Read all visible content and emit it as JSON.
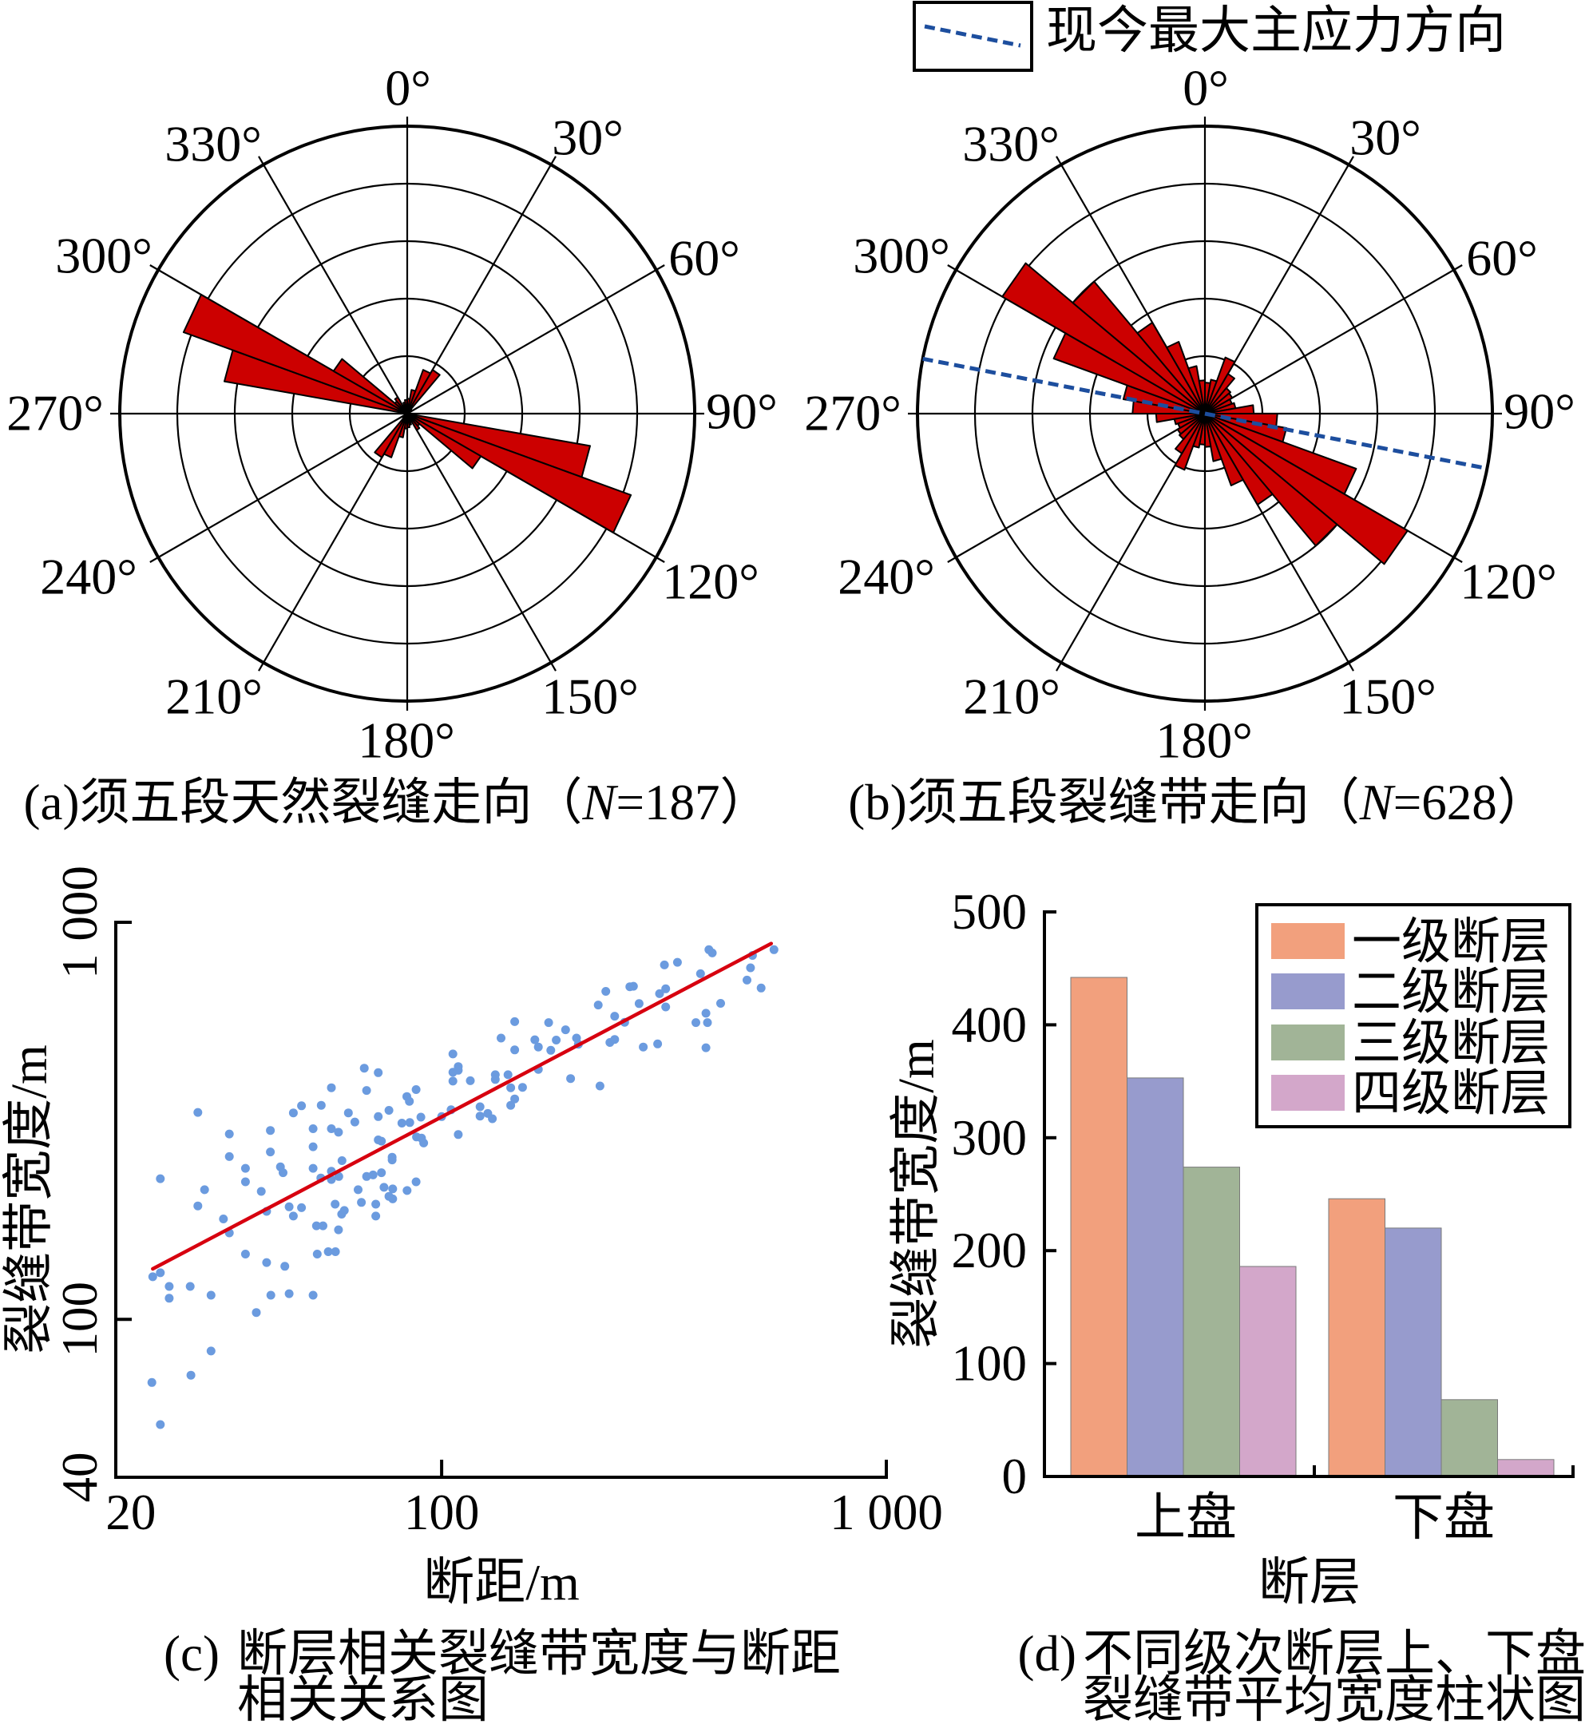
{
  "legend": {
    "label": "现今最大主应力方向",
    "line_color": "#1D4E9E"
  },
  "chart_data": [
    {
      "panel": "a",
      "type": "rose",
      "caption": {
        "label": "(a)",
        "title": "须五段天然裂缝走向",
        "open": "（",
        "n_symbol": "N",
        "n_value": "=187",
        "close": "）"
      },
      "angle_ticks_deg": [
        0,
        30,
        60,
        90,
        120,
        150,
        180,
        210,
        240,
        270,
        300,
        330
      ],
      "angle_labels": [
        "0°",
        "30°",
        "60°",
        "90°",
        "120°",
        "150°",
        "180°",
        "210°",
        "240°",
        "270°",
        "300°",
        "330°"
      ],
      "ring_count": 5,
      "bin_width_deg": 10,
      "radius_ring_units": [
        0.26,
        0.42,
        0.81,
        0.88,
        0.1,
        0,
        0,
        0,
        0,
        0.15,
        3.23,
        4.14,
        1.48,
        0.28,
        0.33,
        0.15,
        0.2,
        0.24,
        0.26,
        0.42,
        0.81,
        0.88,
        0.1,
        0,
        0,
        0,
        0,
        0.15,
        3.23,
        4.14,
        1.48,
        0.28,
        0.33,
        0.15,
        0.2,
        0.24
      ],
      "petal_color": "#CC0000"
    },
    {
      "panel": "b",
      "type": "rose",
      "caption": {
        "label": "(b)",
        "title": "须五段裂缝带走向",
        "open": "（",
        "n_symbol": "N",
        "n_value": "=628",
        "close": "）"
      },
      "angle_ticks_deg": [
        0,
        30,
        60,
        90,
        120,
        150,
        180,
        210,
        240,
        270,
        300,
        330
      ],
      "angle_labels": [
        "0°",
        "30°",
        "60°",
        "90°",
        "120°",
        "150°",
        "180°",
        "210°",
        "240°",
        "270°",
        "300°",
        "330°"
      ],
      "ring_count": 5,
      "bin_width_deg": 10,
      "radius_ring_units": [
        0.54,
        0.6,
        1.04,
        0.8,
        0.58,
        0.55,
        0.5,
        0.54,
        0.85,
        1.26,
        1.44,
        2.8,
        4.07,
        3.0,
        1.83,
        1.33,
        0.84,
        0.58,
        0.54,
        0.6,
        1.04,
        0.8,
        0.58,
        0.55,
        0.5,
        0.54,
        0.85,
        1.26,
        1.44,
        2.8,
        4.07,
        3.0,
        1.83,
        1.33,
        0.84,
        0.58
      ],
      "petal_color": "#CC0000",
      "stress_direction": {
        "azimuth_deg": 101,
        "color": "#1D4E9E",
        "style": "dashed"
      }
    },
    {
      "panel": "c",
      "type": "scatter",
      "caption": {
        "label": "(c)",
        "line1": "断层相关裂缝带宽度与断距",
        "line2": "相关关系图"
      },
      "xlabel": "断距/m",
      "ylabel": "裂缝带宽度/m",
      "xscale": "log",
      "yscale": "log",
      "xlim": [
        18.5,
        1000
      ],
      "ylim": [
        40,
        1000
      ],
      "xticks": [
        20,
        100,
        1000
      ],
      "xtick_labels": [
        "20",
        "100",
        "1 000"
      ],
      "yticks": [
        40,
        100,
        1000
      ],
      "ytick_labels": [
        "40",
        "100",
        "1 000"
      ],
      "grid": false,
      "point_color": "#6B9BDF",
      "points": [
        [
          67.0,
          429
        ],
        [
          72.0,
          418
        ],
        [
          56.5,
          383
        ],
        [
          67.8,
          377
        ],
        [
          87.6,
          379
        ],
        [
          83.5,
          364
        ],
        [
          84.6,
          354
        ],
        [
          48.4,
          345
        ],
        [
          53.6,
          346
        ],
        [
          46.4,
          331
        ],
        [
          28.3,
          332
        ],
        [
          61.7,
          331
        ],
        [
          76.1,
          336
        ],
        [
          72.0,
          324
        ],
        [
          89.8,
          323
        ],
        [
          63.8,
          314
        ],
        [
          81.4,
          312
        ],
        [
          84.8,
          313
        ],
        [
          51.4,
          302
        ],
        [
          56.5,
          302
        ],
        [
          58.6,
          296
        ],
        [
          41.2,
          299
        ],
        [
          33.3,
          293
        ],
        [
          87.8,
          288
        ],
        [
          90.1,
          286
        ],
        [
          72.0,
          283
        ],
        [
          73.2,
          281
        ],
        [
          91.1,
          278
        ],
        [
          51.4,
          272
        ],
        [
          41.2,
          264
        ],
        [
          33.3,
          257
        ],
        [
          77.4,
          256
        ],
        [
          77.4,
          252
        ],
        [
          59.7,
          251
        ],
        [
          36.2,
          240
        ],
        [
          43.4,
          242
        ],
        [
          44.0,
          234
        ],
        [
          51.4,
          240
        ],
        [
          56.5,
          236
        ],
        [
          53.5,
          227
        ],
        [
          56.5,
          225
        ],
        [
          58.7,
          229
        ],
        [
          67.8,
          229
        ],
        [
          70.1,
          231
        ],
        [
          73.2,
          234
        ],
        [
          23.3,
          226
        ],
        [
          36.2,
          222
        ],
        [
          29.3,
          212
        ],
        [
          39.3,
          210
        ],
        [
          64.9,
          212
        ],
        [
          74.2,
          215
        ],
        [
          77.6,
          213
        ],
        [
          83.6,
          211
        ],
        [
          87.6,
          222
        ],
        [
          76.1,
          204
        ],
        [
          77.6,
          201
        ],
        [
          28.3,
          193
        ],
        [
          45.4,
          192
        ],
        [
          48.4,
          191
        ],
        [
          57.6,
          195
        ],
        [
          66.0,
          197
        ],
        [
          71.1,
          195
        ],
        [
          40.4,
          187
        ],
        [
          60.4,
          188
        ],
        [
          59.6,
          184
        ],
        [
          46.4,
          182
        ],
        [
          71.1,
          182
        ],
        [
          32.3,
          179
        ],
        [
          52.3,
          172
        ],
        [
          54.1,
          172
        ],
        [
          58.6,
          168
        ],
        [
          33.3,
          165
        ],
        [
          36.2,
          146
        ],
        [
          52.5,
          146
        ],
        [
          55.6,
          148
        ],
        [
          57.7,
          148
        ],
        [
          40.4,
          139
        ],
        [
          44.4,
          136
        ],
        [
          23.3,
          131
        ],
        [
          22.4,
          128
        ],
        [
          24.4,
          121
        ],
        [
          27.2,
          121
        ],
        [
          24.4,
          113
        ],
        [
          30.3,
          115
        ],
        [
          41.3,
          115
        ],
        [
          45.4,
          116
        ],
        [
          51.4,
          115
        ],
        [
          38.3,
          104
        ],
        [
          30.3,
          83.2
        ],
        [
          22.3,
          69.3
        ],
        [
          27.3,
          72.3
        ],
        [
          23.3,
          54.3
        ],
        [
          100,
          324
        ],
        [
          105,
          337
        ],
        [
          109,
          292
        ],
        [
          106,
          466
        ],
        [
          106,
          419
        ],
        [
          109,
          433
        ],
        [
          109,
          424
        ],
        [
          106,
          398
        ],
        [
          116,
          399
        ],
        [
          122,
          343
        ],
        [
          122,
          325
        ],
        [
          127,
          330
        ],
        [
          130,
          320
        ],
        [
          132,
          413
        ],
        [
          132,
          402
        ],
        [
          136,
          511
        ],
        [
          141,
          413
        ],
        [
          143,
          383
        ],
        [
          143,
          346
        ],
        [
          146,
          359
        ],
        [
          146,
          562
        ],
        [
          146,
          477
        ],
        [
          152,
          384
        ],
        [
          162,
          506
        ],
        [
          165,
          485
        ],
        [
          165,
          426
        ],
        [
          174,
          559
        ],
        [
          176,
          476
        ],
        [
          181,
          505
        ],
        [
          190,
          536
        ],
        [
          195,
          404
        ],
        [
          201,
          511
        ],
        [
          203,
          493
        ],
        [
          225,
          619
        ],
        [
          227,
          387
        ],
        [
          234,
          670
        ],
        [
          239,
          498
        ],
        [
          245,
          580
        ],
        [
          245,
          507
        ],
        [
          258,
          560
        ],
        [
          265,
          688
        ],
        [
          270,
          690
        ],
        [
          278,
          624
        ],
        [
          284,
          485
        ],
        [
          306,
          494
        ],
        [
          309,
          661
        ],
        [
          319,
          680
        ],
        [
          319,
          612
        ],
        [
          317,
          781
        ],
        [
          339,
          793
        ],
        [
          382,
          742
        ],
        [
          373,
          559
        ],
        [
          393,
          590
        ],
        [
          396,
          559
        ],
        [
          393,
          483
        ],
        [
          399,
          853
        ],
        [
          406,
          837
        ],
        [
          424,
          625
        ],
        [
          486,
          715
        ],
        [
          495,
          768
        ],
        [
          500,
          825
        ],
        [
          523,
          683
        ],
        [
          559,
          853
        ]
      ],
      "fit_line": {
        "color": "#D7000F",
        "x": [
          22.4,
          551
        ],
        "y": [
          134,
          884
        ]
      }
    },
    {
      "panel": "d",
      "type": "bar",
      "caption": {
        "label": "(d)",
        "line1": "不同级次断层上、下盘",
        "line2": "裂缝带平均宽度柱状图"
      },
      "xlabel": "断层",
      "ylabel": "裂缝带宽度/m",
      "categories": [
        "上盘",
        "下盘"
      ],
      "series": [
        {
          "name": "一级断层",
          "color": "#F2A07D",
          "values": [
            442,
            246
          ]
        },
        {
          "name": "二级断层",
          "color": "#979BCD",
          "values": [
            353,
            220
          ]
        },
        {
          "name": "三级断层",
          "color": "#A1B497",
          "values": [
            274,
            68
          ]
        },
        {
          "name": "四级断层",
          "color": "#D3A7CA",
          "values": [
            186,
            15
          ]
        }
      ],
      "ylim": [
        0,
        500
      ],
      "yticks": [
        0,
        100,
        200,
        300,
        400,
        500
      ],
      "ytick_labels": [
        "0",
        "100",
        "200",
        "300",
        "400",
        "500"
      ],
      "legend_position": "top-right",
      "grid": false
    }
  ]
}
